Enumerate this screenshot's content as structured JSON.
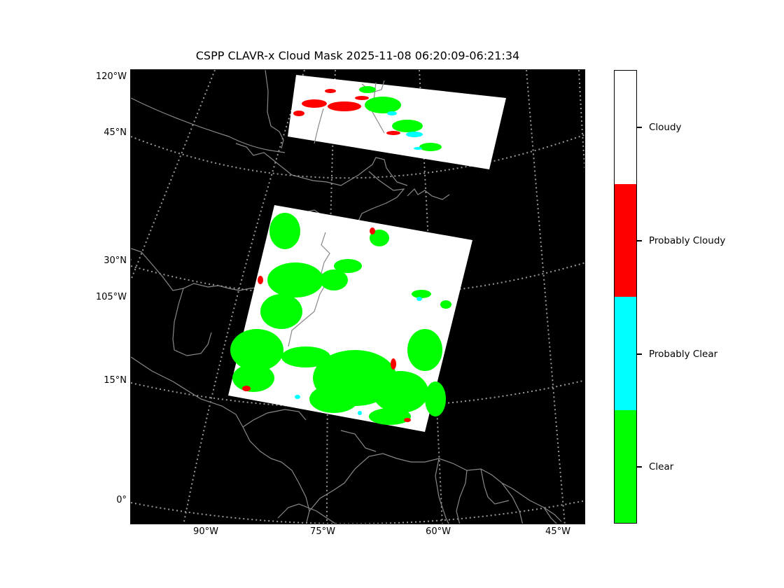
{
  "title": "CSPP CLAVR-x Cloud Mask 2025-11-08 06:20:09-06:21:34",
  "lat_labels": [
    "120°W",
    "45°N",
    "30°N",
    "105°W",
    "15°N",
    "0°"
  ],
  "lon_labels": [
    "90°W",
    "75°W",
    "60°W",
    "45°W"
  ],
  "colorbar": {
    "categories": [
      {
        "label": "Cloudy",
        "color": "#ffffff"
      },
      {
        "label": "Probably Cloudy",
        "color": "#ff0000"
      },
      {
        "label": "Probably Clear",
        "color": "#00ffff"
      },
      {
        "label": "Clear",
        "color": "#00ff00"
      }
    ]
  },
  "colors": {
    "background": "#000000",
    "coastline": "#808080",
    "gridline": "#9a9a9a"
  }
}
